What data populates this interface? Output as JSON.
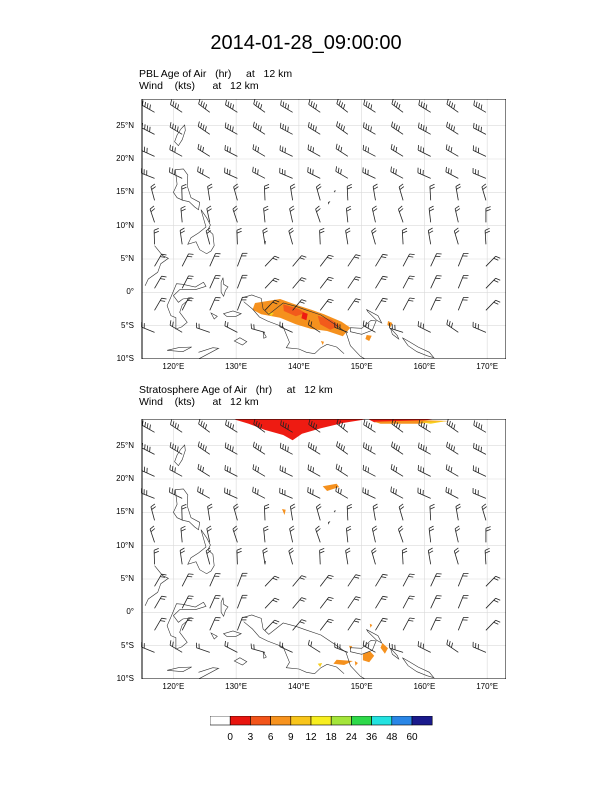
{
  "title": "2014-01-28_09:00:00",
  "panels": [
    {
      "id": "pbl",
      "field_label": "PBL Age of Air   (hr)     at   12 km",
      "wind_label": "Wind    (kts)      at   12 km"
    },
    {
      "id": "strat",
      "field_label": "Stratosphere Age of Air   (hr)     at   12 km",
      "wind_label": "Wind    (kts)      at   12 km"
    }
  ],
  "map_extent": {
    "lon": [
      115,
      173
    ],
    "lat": [
      -10,
      29
    ]
  },
  "lon_ticks": [
    {
      "value": 120,
      "label": "120°E"
    },
    {
      "value": 130,
      "label": "130°E"
    },
    {
      "value": 140,
      "label": "140°E"
    },
    {
      "value": 150,
      "label": "150°E"
    },
    {
      "value": 160,
      "label": "160°E"
    },
    {
      "value": 170,
      "label": "170°E"
    }
  ],
  "lat_ticks": [
    {
      "value": 25,
      "label": "25°N"
    },
    {
      "value": 20,
      "label": "20°N"
    },
    {
      "value": 15,
      "label": "15°N"
    },
    {
      "value": 10,
      "label": "10°N"
    },
    {
      "value": 5,
      "label": "5°N"
    },
    {
      "value": 0,
      "label": "0°"
    },
    {
      "value": -5,
      "label": "5°S"
    },
    {
      "value": -10,
      "label": "10°S"
    }
  ],
  "colorbar": {
    "labels": [
      "0",
      "3",
      "6",
      "9",
      "12",
      "18",
      "24",
      "36",
      "48",
      "60"
    ],
    "colors": [
      "#ffffff",
      "#e8150f",
      "#f2541a",
      "#f7931e",
      "#f8c51b",
      "#f7ee20",
      "#a4e53a",
      "#2ed94a",
      "#23e2e0",
      "#2a86e6",
      "#1a1a8c"
    ]
  },
  "field_colors": {
    "red": "#ee1b12",
    "orange": "#f5911e",
    "orange_red": "#f25a1b",
    "yellow": "#f8cf1e"
  }
}
